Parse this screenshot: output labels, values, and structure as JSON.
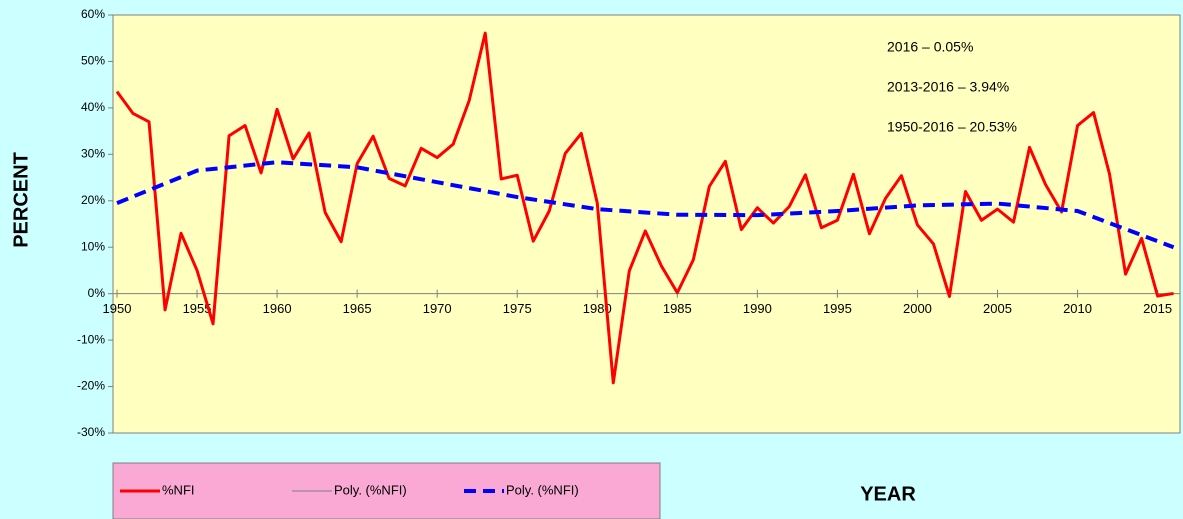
{
  "chart_data": {
    "type": "line",
    "x_label": "YEAR",
    "y_label": "PERCENT",
    "xlim": [
      1949.75,
      2016.4
    ],
    "xticks": [
      1950,
      1955,
      1960,
      1965,
      1970,
      1975,
      1980,
      1985,
      1990,
      1995,
      2000,
      2005,
      2010,
      2015
    ],
    "ylim": [
      -30,
      60
    ],
    "yticks": [
      {
        "value": -30,
        "label": "-30%"
      },
      {
        "value": -20,
        "label": "-20%"
      },
      {
        "value": -10,
        "label": "-10%"
      },
      {
        "value": 0,
        "label": "0%"
      },
      {
        "value": 10,
        "label": "10%"
      },
      {
        "value": 20,
        "label": "20%"
      },
      {
        "value": 30,
        "label": "30%"
      },
      {
        "value": 40,
        "label": "40%"
      },
      {
        "value": 50,
        "label": "50%"
      },
      {
        "value": 60,
        "label": "60%"
      }
    ],
    "annotations": [
      "2016 – 0.05%",
      "2013-2016 – 3.94%",
      "1950-2016 – 20.53%"
    ],
    "series": [
      {
        "name": "%NFI",
        "color": "#ff0000",
        "style": "solid",
        "x": [
          1950,
          1951,
          1952,
          1953,
          1954,
          1955,
          1956,
          1957,
          1958,
          1959,
          1960,
          1961,
          1962,
          1963,
          1964,
          1965,
          1966,
          1967,
          1968,
          1969,
          1970,
          1971,
          1972,
          1973,
          1974,
          1975,
          1976,
          1977,
          1978,
          1979,
          1980,
          1981,
          1982,
          1983,
          1984,
          1985,
          1986,
          1987,
          1988,
          1989,
          1990,
          1991,
          1992,
          1993,
          1994,
          1995,
          1996,
          1997,
          1998,
          1999,
          2000,
          2001,
          2002,
          2003,
          2004,
          2005,
          2006,
          2007,
          2008,
          2009,
          2010,
          2011,
          2012,
          2013,
          2014,
          2015,
          2016
        ],
        "values": [
          43.5,
          38.8,
          37,
          -3.5,
          13,
          5,
          -6.5,
          34,
          36.2,
          26,
          39.7,
          29,
          34.6,
          17.5,
          11.2,
          28,
          33.9,
          24.8,
          23.2,
          31.3,
          29.3,
          32.2,
          41.6,
          56.1,
          24.7,
          25.5,
          11.3,
          17.8,
          30.2,
          34.5,
          19.5,
          -19.2,
          4.9,
          13.5,
          6,
          0.2,
          7.3,
          23.1,
          28.5,
          13.8,
          18.5,
          15.2,
          18.8,
          25.6,
          14.2,
          15.8,
          25.7,
          12.9,
          20.5,
          25.4,
          14.8,
          10.7,
          -0.6,
          22,
          15.8,
          18.2,
          15.4,
          31.5,
          23.5,
          17.6,
          36.2,
          39,
          25.7,
          4.2,
          11.9,
          -0.5,
          0.05
        ]
      },
      {
        "name": "Poly. (%NFI)",
        "color": "#808080",
        "style": "thin",
        "x": [],
        "values": []
      },
      {
        "name": "Poly. (%NFI)",
        "color": "#0000ff",
        "style": "dash",
        "x": [
          1950,
          1955,
          1960,
          1965,
          1970,
          1975,
          1980,
          1985,
          1990,
          1995,
          2000,
          2005,
          2010,
          2016
        ],
        "values": [
          19.5,
          26.5,
          28.3,
          27.2,
          24,
          20.8,
          18.2,
          17,
          16.9,
          17.8,
          19,
          19.4,
          17.8,
          10
        ]
      }
    ]
  }
}
